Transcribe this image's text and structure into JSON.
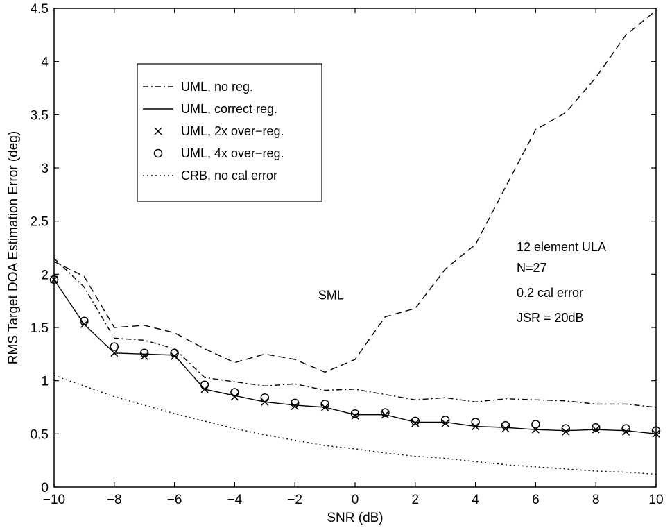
{
  "chart_data": {
    "type": "line",
    "title": "",
    "xlabel": "SNR (dB)",
    "ylabel": "RMS Target DOA Estimation Error (deg)",
    "xlim": [
      -10,
      10
    ],
    "ylim": [
      0,
      4.5
    ],
    "grid": false,
    "legend_position": "top-left",
    "xticks": [
      -10,
      -8,
      -6,
      -4,
      -2,
      0,
      2,
      4,
      6,
      8,
      10
    ],
    "xtick_labels": [
      "−10",
      "−8",
      "−6",
      "−4",
      "−2",
      "0",
      "2",
      "4",
      "6",
      "8",
      "10"
    ],
    "yticks": [
      0,
      0.5,
      1,
      1.5,
      2,
      2.5,
      3,
      3.5,
      4,
      4.5
    ],
    "ytick_labels": [
      "0",
      "0.5",
      "1",
      "1.5",
      "2",
      "2.5",
      "3",
      "3.5",
      "4",
      "4.5"
    ],
    "x": [
      -10,
      -9,
      -8,
      -7,
      -6,
      -5,
      -4,
      -3,
      -2,
      -1,
      0,
      1,
      2,
      3,
      4,
      5,
      6,
      7,
      8,
      9,
      10
    ],
    "series": [
      {
        "name": "UML, no reg.",
        "style": "dashdot",
        "marker": "none",
        "values": [
          2.15,
          1.88,
          1.4,
          1.38,
          1.3,
          1.03,
          0.99,
          0.95,
          0.97,
          0.91,
          0.92,
          0.87,
          0.82,
          0.84,
          0.8,
          0.83,
          0.82,
          0.81,
          0.78,
          0.78,
          0.75
        ]
      },
      {
        "name": "UML, correct reg.",
        "style": "solid",
        "marker": "none",
        "values": [
          1.95,
          1.53,
          1.26,
          1.25,
          1.24,
          0.92,
          0.86,
          0.8,
          0.77,
          0.75,
          0.68,
          0.68,
          0.61,
          0.61,
          0.57,
          0.56,
          0.54,
          0.53,
          0.54,
          0.53,
          0.5
        ]
      },
      {
        "name": "UML, 2x over−reg.",
        "style": "none",
        "marker": "x",
        "values": [
          1.95,
          1.53,
          1.26,
          1.23,
          1.23,
          0.92,
          0.85,
          0.8,
          0.76,
          0.75,
          0.67,
          0.68,
          0.6,
          0.6,
          0.57,
          0.55,
          0.54,
          0.52,
          0.54,
          0.52,
          0.5
        ]
      },
      {
        "name": "UML, 4x over−reg.",
        "style": "none",
        "marker": "o",
        "values": [
          1.95,
          1.56,
          1.32,
          1.26,
          1.26,
          0.96,
          0.89,
          0.84,
          0.79,
          0.78,
          0.69,
          0.7,
          0.62,
          0.63,
          0.61,
          0.58,
          0.59,
          0.55,
          0.56,
          0.55,
          0.53
        ]
      },
      {
        "name": "CRB, no cal error",
        "style": "dotted",
        "marker": "none",
        "values": [
          1.05,
          0.95,
          0.85,
          0.77,
          0.69,
          0.62,
          0.55,
          0.49,
          0.44,
          0.39,
          0.36,
          0.32,
          0.29,
          0.27,
          0.24,
          0.21,
          0.19,
          0.17,
          0.15,
          0.14,
          0.12
        ]
      },
      {
        "name": "SML",
        "style": "dashed",
        "marker": "none",
        "values": [
          2.12,
          1.98,
          1.5,
          1.52,
          1.45,
          1.3,
          1.17,
          1.25,
          1.2,
          1.08,
          1.2,
          1.6,
          1.68,
          2.05,
          2.28,
          2.82,
          3.36,
          3.52,
          3.85,
          4.25,
          4.48
        ]
      }
    ],
    "series_label": {
      "text": "SML",
      "x": -0.8,
      "y": 1.75
    },
    "annotations": [
      "12 element ULA",
      "N=27",
      "0.2 cal error",
      "JSR = 20dB"
    ]
  }
}
